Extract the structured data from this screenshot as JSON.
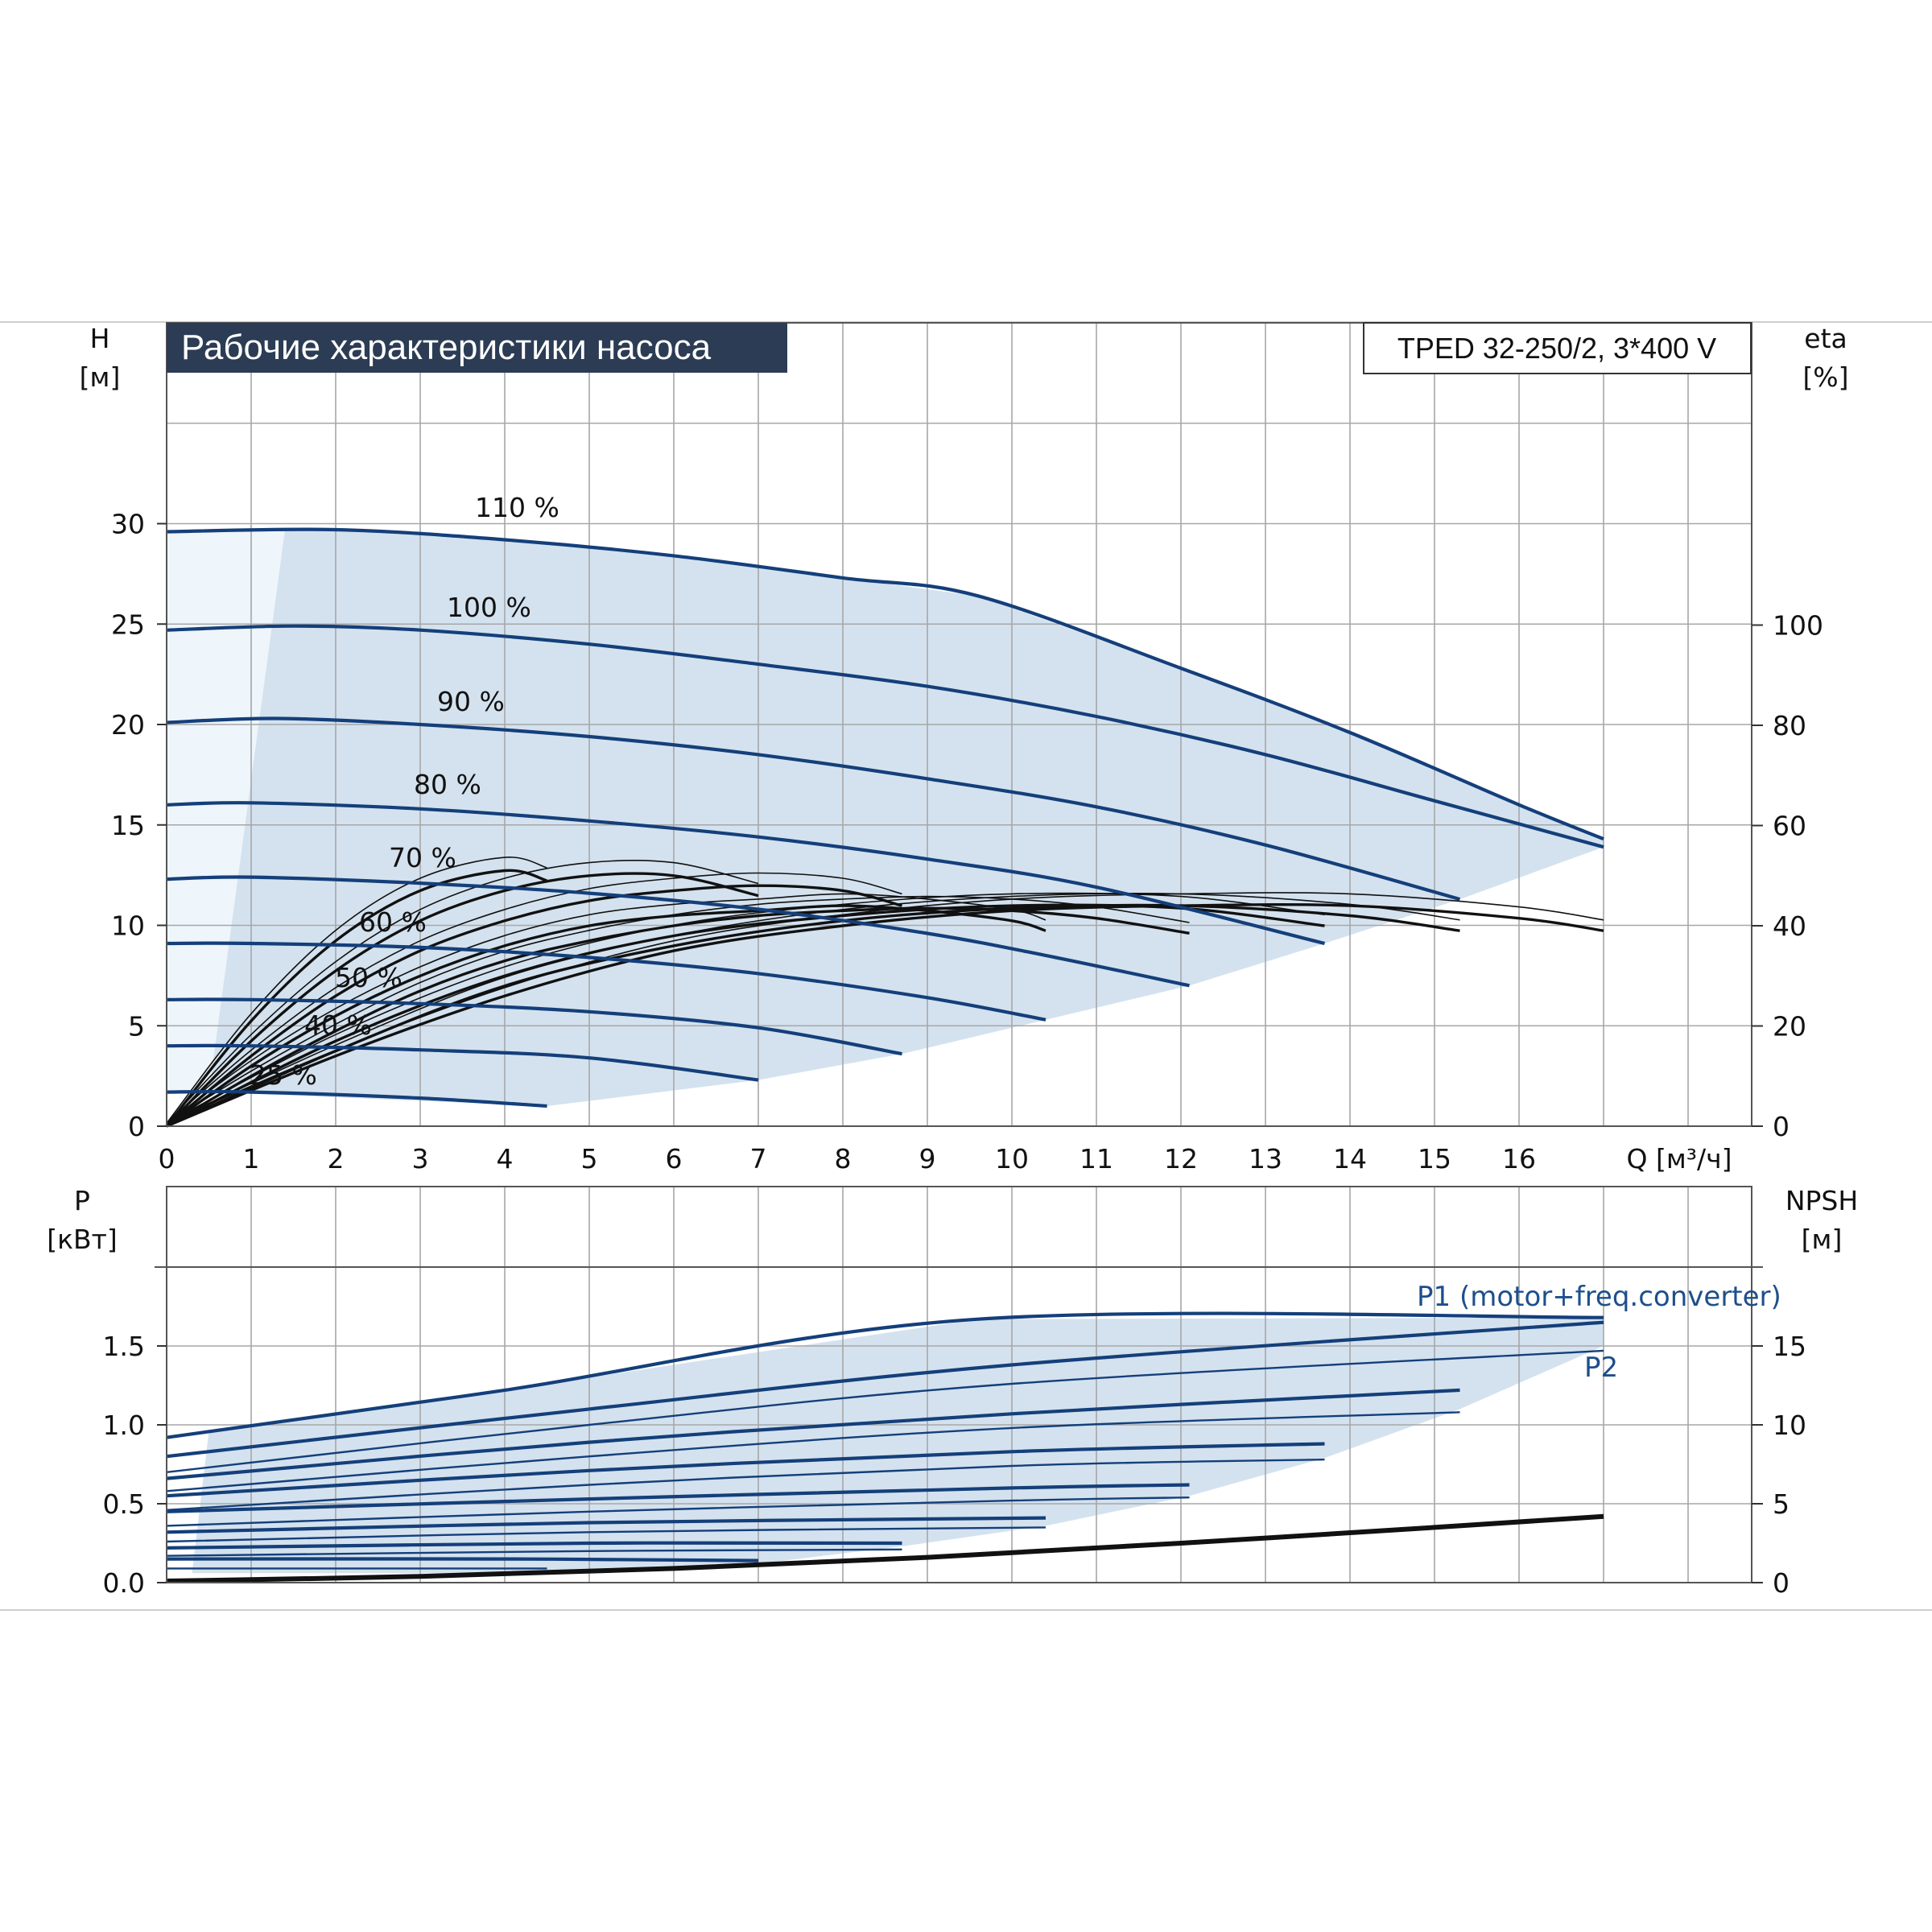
{
  "title": "Рабочие характеристики насоса",
  "model": "TPED 32-250/2, 3*400 V",
  "colors": {
    "speed_curve": "#143f7a",
    "efficiency_curve": "#111111",
    "envelope_fill": "#d4e2ef",
    "left_fill": "#eef5fb",
    "grid": "#a7a7a7",
    "title_bg": "#2c3c54",
    "label_blue": "#1d4f8c"
  },
  "top": {
    "left_axis": {
      "name": "H",
      "unit": "[м]"
    },
    "right_axis": {
      "name": "eta",
      "unit": "[%]"
    },
    "x_axis": {
      "label": "Q [м³/ч]"
    },
    "x_ticks": [
      "0",
      "1",
      "2",
      "3",
      "4",
      "5",
      "6",
      "7",
      "8",
      "9",
      "10",
      "11",
      "12",
      "13",
      "14",
      "15",
      "16"
    ],
    "y_ticks": [
      "0",
      "5",
      "10",
      "15",
      "20",
      "25",
      "30"
    ],
    "eta_ticks": [
      "0",
      "20",
      "40",
      "60",
      "80",
      "100"
    ],
    "speed_labels": [
      "110 %",
      "100 %",
      "90 %",
      "80 %",
      "70 %",
      "60 %",
      "50 %",
      "40 %",
      "25 %"
    ]
  },
  "bottom": {
    "left_axis": {
      "name": "P",
      "unit": "[кВт]"
    },
    "right_axis": {
      "name": "NPSH",
      "unit": "[м]"
    },
    "y_ticks": [
      "0.0",
      "0.5",
      "1.0",
      "1.5"
    ],
    "npsh_ticks": [
      "0",
      "5",
      "10",
      "15"
    ],
    "p1_label": "P1 (motor+freq.converter)",
    "p2_label": "P2"
  },
  "chart_data": [
    {
      "type": "line",
      "title": "Рабочие характеристики насоса",
      "xlabel": "Q [м³/ч]",
      "ylabel": "H [м]",
      "y2label": "eta [%]",
      "xlim": [
        0,
        18
      ],
      "ylim": [
        0,
        35
      ],
      "y2lim": [
        0,
        140
      ],
      "grid": true,
      "head_curves": [
        {
          "name": "110 %",
          "x": [
            0,
            2,
            4,
            6,
            8,
            9.6,
            12,
            14,
            16,
            17
          ],
          "y": [
            29.6,
            29.7,
            29.2,
            28.4,
            27.3,
            26.4,
            22.8,
            19.6,
            16.0,
            14.3
          ]
        },
        {
          "name": "100 %",
          "x": [
            0,
            1.5,
            3,
            5,
            7,
            9,
            11,
            13,
            15,
            17
          ],
          "y": [
            24.7,
            24.9,
            24.7,
            24.0,
            23.0,
            21.9,
            20.4,
            18.5,
            16.2,
            13.9
          ]
        },
        {
          "name": "90 %",
          "x": [
            0,
            1.3,
            3,
            5,
            7,
            9,
            11,
            13,
            15.3
          ],
          "y": [
            20.1,
            20.3,
            20.0,
            19.4,
            18.5,
            17.3,
            15.9,
            14.0,
            11.3
          ]
        },
        {
          "name": "80 %",
          "x": [
            0,
            1,
            3,
            5,
            7,
            9,
            11,
            13.7
          ],
          "y": [
            16.0,
            16.1,
            15.8,
            15.2,
            14.4,
            13.3,
            11.9,
            9.1
          ]
        },
        {
          "name": "70 %",
          "x": [
            0,
            1,
            3,
            5,
            7,
            9,
            10.4,
            12.1
          ],
          "y": [
            12.3,
            12.4,
            12.1,
            11.6,
            10.8,
            9.6,
            8.5,
            7.0
          ]
        },
        {
          "name": "60 %",
          "x": [
            0,
            1,
            3,
            5,
            7,
            9,
            10.4
          ],
          "y": [
            9.1,
            9.1,
            8.9,
            8.4,
            7.6,
            6.4,
            5.3
          ]
        },
        {
          "name": "50 %",
          "x": [
            0,
            1,
            3,
            5,
            7,
            8.7
          ],
          "y": [
            6.3,
            6.3,
            6.1,
            5.7,
            4.9,
            3.6
          ]
        },
        {
          "name": "40 %",
          "x": [
            0,
            1,
            3,
            5,
            7
          ],
          "y": [
            4.0,
            4.0,
            3.8,
            3.4,
            2.3
          ]
        },
        {
          "name": "25 %",
          "x": [
            0,
            1,
            3,
            4.5
          ],
          "y": [
            1.7,
            1.7,
            1.4,
            1.0
          ]
        }
      ],
      "efficiency_curves_pct": [
        {
          "x": [
            0,
            1,
            2,
            3,
            4,
            4.5
          ],
          "y": [
            0,
            21,
            37,
            47,
            51,
            49
          ]
        },
        {
          "x": [
            0,
            1,
            2,
            3,
            4,
            5,
            6,
            7
          ],
          "y": [
            0,
            17,
            31,
            41,
            47,
            50,
            50,
            46
          ]
        },
        {
          "x": [
            0,
            1,
            2,
            3,
            4,
            5,
            6,
            7,
            8,
            8.7
          ],
          "y": [
            0,
            14,
            26,
            35,
            41,
            45,
            47,
            48,
            47,
            44
          ]
        },
        {
          "x": [
            0,
            1,
            2,
            3,
            4,
            5,
            6,
            7,
            8,
            9,
            10,
            10.4
          ],
          "y": [
            0,
            12,
            22,
            30,
            36,
            40,
            42,
            43,
            44,
            43,
            41,
            39
          ]
        },
        {
          "x": [
            0,
            1,
            2,
            3,
            4,
            5,
            6,
            7,
            8,
            9,
            10,
            11,
            12.1
          ],
          "y": [
            0,
            10,
            19,
            27,
            33,
            37,
            40,
            42,
            43,
            43.5,
            43,
            41.5,
            38.5
          ]
        },
        {
          "x": [
            0,
            2,
            4,
            6,
            8,
            10,
            12,
            13.7
          ],
          "y": [
            0,
            17,
            30,
            38,
            42,
            44,
            43.5,
            40
          ]
        },
        {
          "x": [
            0,
            2,
            4,
            6,
            8,
            10,
            12,
            14,
            15.3
          ],
          "y": [
            0,
            15,
            28,
            36,
            41,
            43.5,
            44,
            42,
            39
          ]
        },
        {
          "x": [
            0,
            2,
            4,
            6,
            8,
            10,
            12,
            14,
            16,
            17
          ],
          "y": [
            0,
            14,
            26,
            35,
            40,
            43,
            44,
            44,
            41.5,
            39
          ]
        }
      ]
    },
    {
      "type": "line",
      "ylabel": "P [кВт]",
      "y2label": "NPSH [м]",
      "xlim": [
        0,
        18
      ],
      "ylim": [
        0,
        2.0
      ],
      "y2lim": [
        0,
        20
      ],
      "grid": true,
      "p1_curves": [
        {
          "name": "P1 (motor+freq.converter)",
          "x": [
            0,
            4,
            9.6,
            17
          ],
          "y": [
            0.92,
            1.22,
            1.67,
            1.68
          ]
        },
        {
          "x": [
            0,
            5,
            10,
            17
          ],
          "y": [
            0.8,
            1.1,
            1.38,
            1.65
          ]
        },
        {
          "x": [
            0,
            5,
            10,
            15.3
          ],
          "y": [
            0.66,
            0.89,
            1.07,
            1.22
          ]
        },
        {
          "x": [
            0,
            5,
            10,
            13.7
          ],
          "y": [
            0.55,
            0.71,
            0.83,
            0.88
          ]
        },
        {
          "x": [
            0,
            5,
            10,
            12.1
          ],
          "y": [
            0.45,
            0.53,
            0.6,
            0.62
          ]
        },
        {
          "x": [
            0,
            5,
            10.4
          ],
          "y": [
            0.32,
            0.38,
            0.41
          ]
        },
        {
          "x": [
            0,
            5,
            8.7
          ],
          "y": [
            0.22,
            0.25,
            0.25
          ]
        },
        {
          "x": [
            0,
            4,
            7
          ],
          "y": [
            0.15,
            0.15,
            0.14
          ]
        }
      ],
      "p2_curves": [
        {
          "name": "P2",
          "x": [
            0,
            5,
            10,
            17
          ],
          "y": [
            0.7,
            1.0,
            1.26,
            1.47
          ]
        },
        {
          "x": [
            0,
            5,
            10,
            15.3
          ],
          "y": [
            0.58,
            0.8,
            0.98,
            1.08
          ]
        },
        {
          "x": [
            0,
            5,
            10,
            13.7
          ],
          "y": [
            0.46,
            0.62,
            0.74,
            0.78
          ]
        },
        {
          "x": [
            0,
            5,
            10,
            12.1
          ],
          "y": [
            0.36,
            0.45,
            0.52,
            0.54
          ]
        },
        {
          "x": [
            0,
            5,
            10.4
          ],
          "y": [
            0.26,
            0.32,
            0.35
          ]
        },
        {
          "x": [
            0,
            5,
            8.7
          ],
          "y": [
            0.17,
            0.2,
            0.21
          ]
        },
        {
          "x": [
            0,
            4.5
          ],
          "y": [
            0.09,
            0.09
          ]
        }
      ],
      "npsh_curve_m": {
        "x": [
          0,
          3,
          6,
          9,
          12,
          15,
          17
        ],
        "y": [
          0.1,
          0.4,
          0.9,
          1.6,
          2.5,
          3.5,
          4.2
        ]
      }
    }
  ]
}
